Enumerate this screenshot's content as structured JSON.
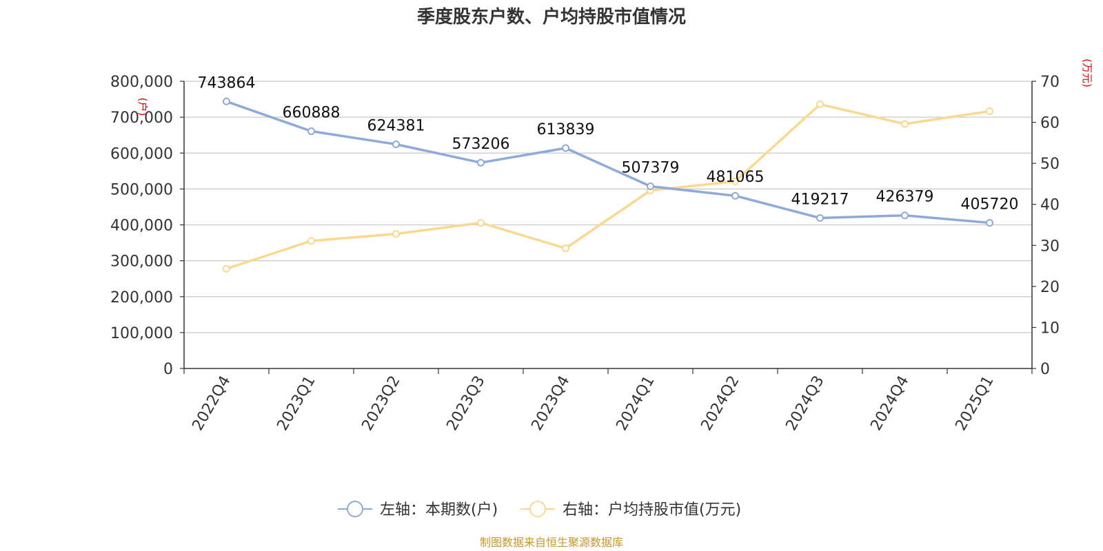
{
  "chart_data": {
    "type": "line",
    "title": "季度股东户数、户均持股市值情况",
    "categories": [
      "2022Q4",
      "2023Q1",
      "2023Q2",
      "2023Q3",
      "2023Q4",
      "2024Q1",
      "2024Q2",
      "2024Q3",
      "2024Q4",
      "2025Q1"
    ],
    "y_left": {
      "unit_label": "(户)",
      "ylim": [
        0,
        800000
      ],
      "ticks": [
        "0",
        "100,000",
        "200,000",
        "300,000",
        "400,000",
        "500,000",
        "600,000",
        "700,000",
        "800,000"
      ]
    },
    "y_right": {
      "unit_label": "(万元)",
      "ylim": [
        0,
        70
      ],
      "ticks": [
        "0",
        "10",
        "20",
        "30",
        "40",
        "50",
        "60",
        "70"
      ]
    },
    "series": [
      {
        "name": "左轴：本期数(户)",
        "axis": "left",
        "color": "#8eaadb",
        "values": [
          743864,
          660888,
          624381,
          573206,
          613839,
          507379,
          481065,
          419217,
          426379,
          405720
        ],
        "labels": [
          "743864",
          "660888",
          "624381",
          "573206",
          "613839",
          "507379",
          "481065",
          "419217",
          "426379",
          "405720"
        ]
      },
      {
        "name": "右轴：户均持股市值(万元)",
        "axis": "right",
        "color": "#fbd890",
        "values": [
          24.3,
          31.1,
          32.8,
          35.5,
          29.3,
          43.4,
          45.6,
          64.4,
          59.6,
          62.7
        ]
      }
    ],
    "grid": true,
    "legend_position": "bottom-center",
    "source_note": "制图数据来自恒生聚源数据库"
  }
}
